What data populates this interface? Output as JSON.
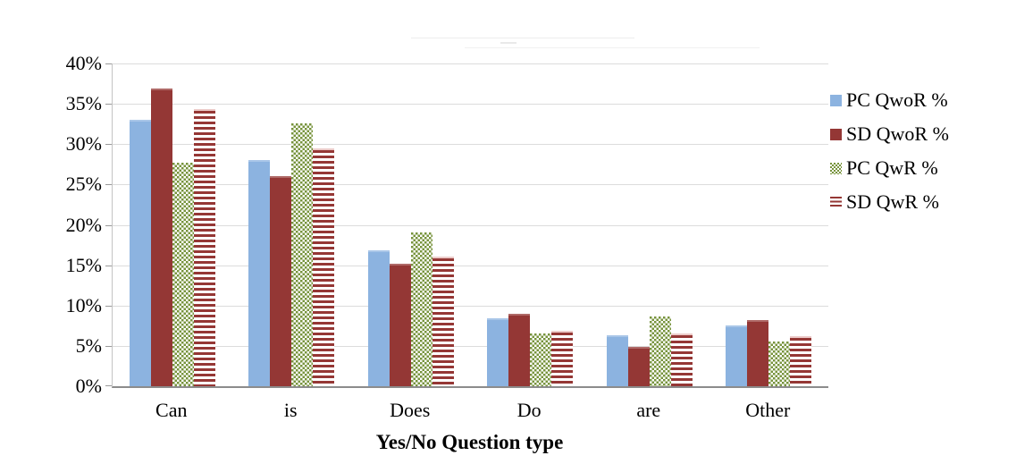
{
  "chart_data": {
    "type": "bar",
    "title": "",
    "categories": [
      "Can",
      "is",
      "Does",
      "Do",
      "are",
      "Other"
    ],
    "series": [
      {
        "name": "PC QwoR %",
        "pattern": "solid",
        "color": "#8CB3E0",
        "values": [
          33.0,
          28.0,
          16.9,
          8.4,
          6.3,
          7.5
        ]
      },
      {
        "name": "SD QwoR %",
        "pattern": "solid",
        "color": "#943735",
        "values": [
          36.9,
          26.0,
          15.2,
          9.0,
          4.9,
          8.2
        ]
      },
      {
        "name": "PC QwR %",
        "pattern": "checker",
        "color": "#77933C",
        "values": [
          27.7,
          32.6,
          19.1,
          6.5,
          8.7,
          5.5
        ]
      },
      {
        "name": "SD QwR %",
        "pattern": "hstripe",
        "color": "#953735",
        "values": [
          34.3,
          29.5,
          16.1,
          6.9,
          6.5,
          6.2
        ]
      }
    ],
    "xlabel": "Yes/No Question type",
    "ylabel": "",
    "ylim": [
      0,
      40
    ],
    "ytick_step": 5,
    "ytick_labels": [
      "0%",
      "5%",
      "10%",
      "15%",
      "20%",
      "25%",
      "30%",
      "35%",
      "40%"
    ],
    "grid": true,
    "legend_position": "right",
    "colors": {
      "gridline": "#dcdcdc",
      "axis_line": "#8c8c8c",
      "blue": "#8CB3E0",
      "dark_red": "#943735",
      "green": "#77933C"
    }
  }
}
